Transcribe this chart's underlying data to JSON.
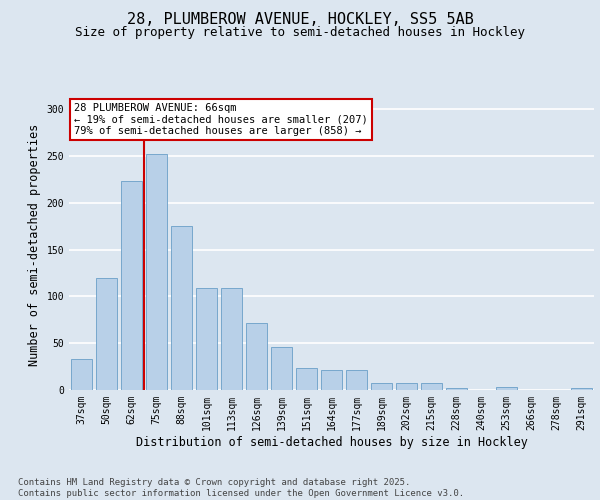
{
  "title_line1": "28, PLUMBEROW AVENUE, HOCKLEY, SS5 5AB",
  "title_line2": "Size of property relative to semi-detached houses in Hockley",
  "xlabel": "Distribution of semi-detached houses by size in Hockley",
  "ylabel": "Number of semi-detached properties",
  "categories": [
    "37sqm",
    "50sqm",
    "62sqm",
    "75sqm",
    "88sqm",
    "101sqm",
    "113sqm",
    "126sqm",
    "139sqm",
    "151sqm",
    "164sqm",
    "177sqm",
    "189sqm",
    "202sqm",
    "215sqm",
    "228sqm",
    "240sqm",
    "253sqm",
    "266sqm",
    "278sqm",
    "291sqm"
  ],
  "values": [
    33,
    120,
    223,
    252,
    175,
    109,
    109,
    72,
    46,
    23,
    21,
    21,
    7,
    7,
    7,
    2,
    0,
    3,
    0,
    0,
    2
  ],
  "bar_color": "#b8d0e8",
  "bar_edge_color": "#6a9fc8",
  "vline_color": "#cc0000",
  "vline_bin_index": 2,
  "annotation_text": "28 PLUMBEROW AVENUE: 66sqm\n← 19% of semi-detached houses are smaller (207)\n79% of semi-detached houses are larger (858) →",
  "annotation_box_facecolor": "#ffffff",
  "annotation_box_edgecolor": "#cc0000",
  "footer_text": "Contains HM Land Registry data © Crown copyright and database right 2025.\nContains public sector information licensed under the Open Government Licence v3.0.",
  "ylim": [
    0,
    310
  ],
  "yticks": [
    0,
    50,
    100,
    150,
    200,
    250,
    300
  ],
  "background_color": "#dce6f0",
  "plot_background_color": "#dce6f0",
  "grid_color": "#ffffff",
  "title_fontsize": 11,
  "subtitle_fontsize": 9,
  "axis_label_fontsize": 8.5,
  "tick_fontsize": 7,
  "annotation_fontsize": 7.5,
  "footer_fontsize": 6.5
}
